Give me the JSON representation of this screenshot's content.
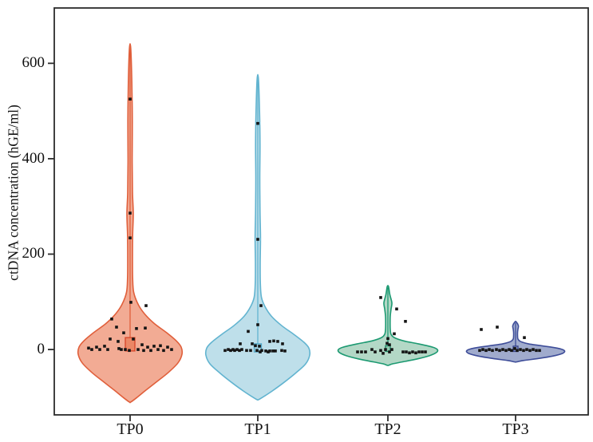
{
  "chart_data": {
    "type": "violin",
    "title": "",
    "xlabel": "",
    "ylabel": "ctDNA concentration (hGE/ml)",
    "categories": [
      "TP0",
      "TP1",
      "TP2",
      "TP3"
    ],
    "yticks": [
      0,
      200,
      400,
      600
    ],
    "ylim": [
      -137,
      716
    ],
    "grid": false,
    "legend": "none",
    "point_color": "#141414",
    "frame_color": "#2b2b2b",
    "groups": [
      {
        "name": "TP0",
        "fill": "#F1A78E",
        "stroke": "#E05F3B",
        "box": {
          "lo": -3,
          "hi": 25,
          "half": 6,
          "fill": "#EB8766",
          "stroke": "#D64428"
        },
        "whisker_max": 630,
        "profile": [
          [
            632,
            0.8
          ],
          [
            560,
            2.2
          ],
          [
            480,
            2.8
          ],
          [
            400,
            2.6
          ],
          [
            330,
            3.0
          ],
          [
            285,
            4.0
          ],
          [
            240,
            3.2
          ],
          [
            190,
            3.0
          ],
          [
            150,
            3.2
          ],
          [
            120,
            4.5
          ],
          [
            95,
            10
          ],
          [
            75,
            18
          ],
          [
            55,
            30
          ],
          [
            35,
            46
          ],
          [
            18,
            58
          ],
          [
            5,
            64
          ],
          [
            -10,
            65
          ],
          [
            -28,
            60
          ],
          [
            -48,
            48
          ],
          [
            -68,
            33
          ],
          [
            -85,
            20
          ],
          [
            -100,
            9
          ],
          [
            -110,
            1
          ]
        ],
        "points": [
          [
            0,
            525
          ],
          [
            0,
            286
          ],
          [
            0,
            234
          ],
          [
            1,
            99
          ],
          [
            20,
            92
          ],
          [
            -23,
            64
          ],
          [
            -17,
            47
          ],
          [
            8,
            44
          ],
          [
            19,
            45
          ],
          [
            -8,
            35
          ],
          [
            -25,
            22
          ],
          [
            4,
            22
          ],
          [
            -15,
            17
          ],
          [
            15,
            10
          ],
          [
            38,
            8
          ],
          [
            -32,
            7
          ],
          [
            30,
            7
          ],
          [
            -42,
            5
          ],
          [
            22,
            5
          ],
          [
            47,
            5
          ],
          [
            -52,
            3
          ],
          [
            -14,
            2
          ],
          [
            -48,
            0
          ],
          [
            -38,
            0
          ],
          [
            -28,
            0
          ],
          [
            -11,
            0
          ],
          [
            -6,
            0
          ],
          [
            10,
            0
          ],
          [
            35,
            0
          ],
          [
            52,
            0
          ],
          [
            -1,
            -2
          ],
          [
            17,
            -2
          ],
          [
            26,
            -2
          ],
          [
            42,
            -2
          ]
        ]
      },
      {
        "name": "TP1",
        "fill": "#BBDDE9",
        "stroke": "#62B4D0",
        "box": {
          "lo": -5,
          "hi": 12,
          "half": 4.5,
          "fill": "#A3D2E2",
          "stroke": "#4FA6C6"
        },
        "whisker_max": 566,
        "profile": [
          [
            568,
            0.8
          ],
          [
            500,
            2.2
          ],
          [
            430,
            2.8
          ],
          [
            360,
            2.5
          ],
          [
            290,
            2.8
          ],
          [
            235,
            3.4
          ],
          [
            180,
            3.0
          ],
          [
            140,
            3.2
          ],
          [
            110,
            4.5
          ],
          [
            90,
            9
          ],
          [
            70,
            17
          ],
          [
            50,
            30
          ],
          [
            32,
            45
          ],
          [
            15,
            58
          ],
          [
            3,
            64
          ],
          [
            -12,
            65
          ],
          [
            -30,
            60
          ],
          [
            -50,
            47
          ],
          [
            -70,
            32
          ],
          [
            -87,
            18
          ],
          [
            -98,
            8
          ],
          [
            -105,
            1
          ]
        ],
        "points": [
          [
            0,
            474
          ],
          [
            0,
            231
          ],
          [
            4,
            92
          ],
          [
            0,
            52
          ],
          [
            -12,
            38
          ],
          [
            15,
            17
          ],
          [
            20,
            18
          ],
          [
            25,
            17
          ],
          [
            -22,
            12
          ],
          [
            -7,
            12
          ],
          [
            31,
            12
          ],
          [
            -3,
            8
          ],
          [
            2,
            7
          ],
          [
            -41,
            -2
          ],
          [
            -37,
            0
          ],
          [
            -34,
            -2
          ],
          [
            -31,
            0
          ],
          [
            -29,
            -2
          ],
          [
            -26,
            0
          ],
          [
            -23,
            -2
          ],
          [
            -20,
            0
          ],
          [
            -14,
            -2
          ],
          [
            -9,
            -2
          ],
          [
            -1,
            -2
          ],
          [
            3,
            -5
          ],
          [
            5,
            -2
          ],
          [
            10,
            -3
          ],
          [
            13,
            -5
          ],
          [
            15,
            -3
          ],
          [
            19,
            -3
          ],
          [
            22,
            -3
          ],
          [
            30,
            -2
          ],
          [
            34,
            -3
          ]
        ]
      },
      {
        "name": "TP2",
        "fill": "#AFD6C3",
        "stroke": "#1D9A72",
        "box": {
          "lo": -4,
          "hi": 8,
          "half": 3,
          "fill": "#8FC7AD",
          "stroke": "#18835F"
        },
        "whisker_max": 130,
        "profile": [
          [
            132,
            0.8
          ],
          [
            115,
            2.5
          ],
          [
            98,
            5
          ],
          [
            85,
            4
          ],
          [
            70,
            3
          ],
          [
            55,
            2.8
          ],
          [
            42,
            3
          ],
          [
            32,
            4
          ],
          [
            25,
            8
          ],
          [
            18,
            20
          ],
          [
            12,
            38
          ],
          [
            5,
            56
          ],
          [
            0,
            62
          ],
          [
            -6,
            61
          ],
          [
            -13,
            52
          ],
          [
            -20,
            36
          ],
          [
            -26,
            18
          ],
          [
            -30,
            6
          ],
          [
            -33,
            1
          ]
        ],
        "points": [
          [
            -9,
            109
          ],
          [
            11,
            85
          ],
          [
            22,
            59
          ],
          [
            8,
            33
          ],
          [
            0,
            23
          ],
          [
            -1,
            13
          ],
          [
            2,
            10
          ],
          [
            -38,
            -5
          ],
          [
            -33,
            -5
          ],
          [
            -28,
            -5
          ],
          [
            -20,
            0
          ],
          [
            -16,
            -5
          ],
          [
            -9,
            -2
          ],
          [
            -6,
            -8
          ],
          [
            -3,
            0
          ],
          [
            2,
            -5
          ],
          [
            5,
            0
          ],
          [
            19,
            -5
          ],
          [
            23,
            -5
          ],
          [
            27,
            -7
          ],
          [
            31,
            -5
          ],
          [
            35,
            -7
          ],
          [
            39,
            -5
          ],
          [
            43,
            -5
          ],
          [
            47,
            -5
          ]
        ]
      },
      {
        "name": "TP3",
        "fill": "#9BA6CA",
        "stroke": "#3E4D99",
        "box": {
          "lo": -4,
          "hi": 7,
          "half": 3,
          "fill": "#8893BE",
          "stroke": "#34418A"
        },
        "whisker_max": 56,
        "profile": [
          [
            58,
            0.8
          ],
          [
            50,
            3.5
          ],
          [
            43,
            3
          ],
          [
            36,
            2.5
          ],
          [
            28,
            2.5
          ],
          [
            22,
            3
          ],
          [
            17,
            6
          ],
          [
            12,
            16
          ],
          [
            8,
            32
          ],
          [
            3,
            52
          ],
          [
            -2,
            61
          ],
          [
            -8,
            59
          ],
          [
            -14,
            46
          ],
          [
            -19,
            28
          ],
          [
            -23,
            10
          ],
          [
            -26,
            1
          ]
        ],
        "points": [
          [
            -43,
            42
          ],
          [
            -23,
            47
          ],
          [
            11,
            25
          ],
          [
            -45,
            -2
          ],
          [
            -41,
            0
          ],
          [
            -37,
            -2
          ],
          [
            -33,
            0
          ],
          [
            -29,
            -2
          ],
          [
            -24,
            0
          ],
          [
            -20,
            -2
          ],
          [
            -16,
            0
          ],
          [
            -12,
            -2
          ],
          [
            -8,
            0
          ],
          [
            -5,
            -2
          ],
          [
            -1,
            2
          ],
          [
            2,
            -2
          ],
          [
            6,
            0
          ],
          [
            10,
            -2
          ],
          [
            14,
            0
          ],
          [
            18,
            -2
          ],
          [
            22,
            0
          ],
          [
            26,
            -2
          ],
          [
            30,
            -2
          ]
        ]
      }
    ]
  }
}
